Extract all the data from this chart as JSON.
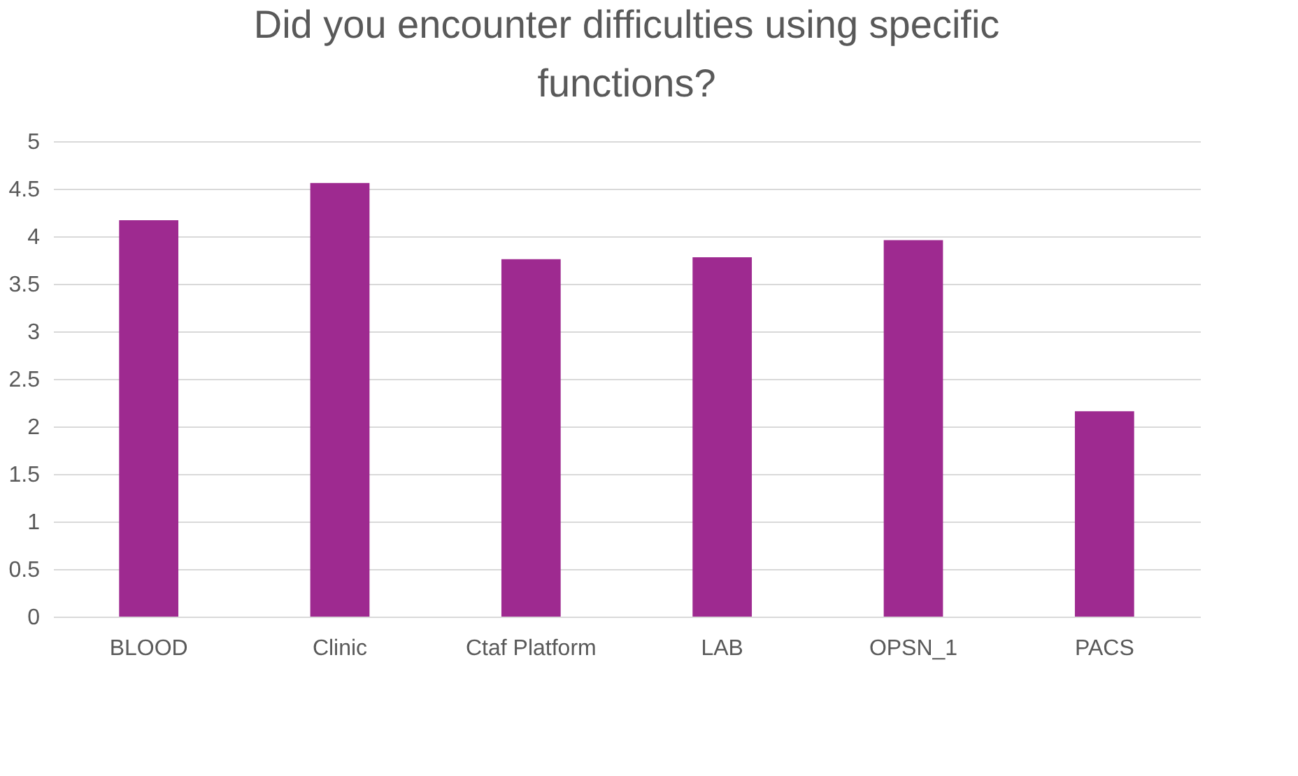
{
  "chart_data": {
    "type": "bar",
    "title": "Did you encounter difficulties using specific functions?",
    "categories": [
      "BLOOD",
      "Clinic",
      "Ctaf Platform",
      "LAB",
      "OPSN_1",
      "PACS"
    ],
    "values": [
      4.17,
      4.56,
      3.76,
      3.78,
      3.96,
      2.16
    ],
    "color": "#9e2a90",
    "ylim": [
      0,
      5
    ],
    "yticks": [
      0,
      0.5,
      1,
      1.5,
      2,
      2.5,
      3,
      3.5,
      4,
      4.5,
      5
    ],
    "grid": "y"
  }
}
